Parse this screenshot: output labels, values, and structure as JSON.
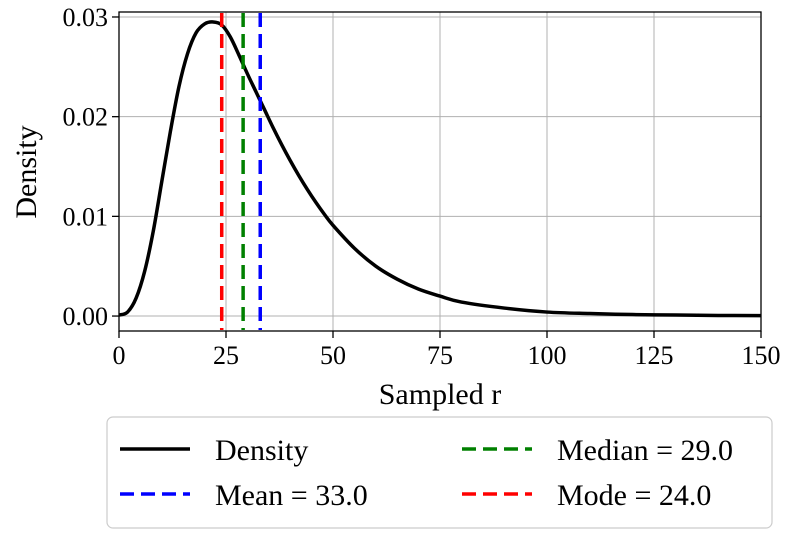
{
  "chart_data": {
    "type": "line",
    "xlabel": "Sampled r",
    "ylabel": "Density",
    "xlim": [
      0,
      150
    ],
    "ylim": [
      -0.0015,
      0.0305
    ],
    "xticks": [
      "0",
      "25",
      "50",
      "75",
      "100",
      "125",
      "150"
    ],
    "yticks": [
      "0.00",
      "0.01",
      "0.02",
      "0.03"
    ],
    "grid": true,
    "legend_placement": "below",
    "series": [
      {
        "name": "Density",
        "color": "#000000",
        "x": [
          0,
          2,
          4,
          6,
          8,
          10,
          12,
          14,
          16,
          18,
          20,
          22,
          24,
          26,
          28,
          30,
          32,
          34,
          36,
          38,
          40,
          42,
          44,
          46,
          48,
          50,
          55,
          60,
          65,
          70,
          75,
          80,
          90,
          100,
          110,
          120,
          130,
          140,
          150
        ],
        "y": [
          0.0001,
          0.0004,
          0.0018,
          0.0045,
          0.0085,
          0.0135,
          0.0185,
          0.023,
          0.0263,
          0.0284,
          0.0293,
          0.0295,
          0.0292,
          0.028,
          0.0262,
          0.0243,
          0.0225,
          0.0207,
          0.0189,
          0.0172,
          0.0156,
          0.0141,
          0.0127,
          0.0114,
          0.0102,
          0.0091,
          0.0068,
          0.005,
          0.0037,
          0.0027,
          0.002,
          0.0014,
          0.0008,
          0.0004,
          0.00025,
          0.00015,
          0.0001,
          6e-05,
          4e-05
        ]
      }
    ],
    "vlines": [
      {
        "name": "Mean = 33.0",
        "x": 33.0,
        "color": "#0000ff"
      },
      {
        "name": "Median = 29.0",
        "x": 29.0,
        "color": "#008000"
      },
      {
        "name": "Mode = 24.0",
        "x": 24.0,
        "color": "#ff0000"
      }
    ]
  },
  "legend": {
    "items": [
      {
        "label": "Density",
        "color": "#000000",
        "style": "solid"
      },
      {
        "label": "Median = 29.0",
        "color": "#008000",
        "style": "dashed"
      },
      {
        "label": "Mean = 33.0",
        "color": "#0000ff",
        "style": "dashed"
      },
      {
        "label": "Mode = 24.0",
        "color": "#ff0000",
        "style": "dashed"
      }
    ]
  }
}
